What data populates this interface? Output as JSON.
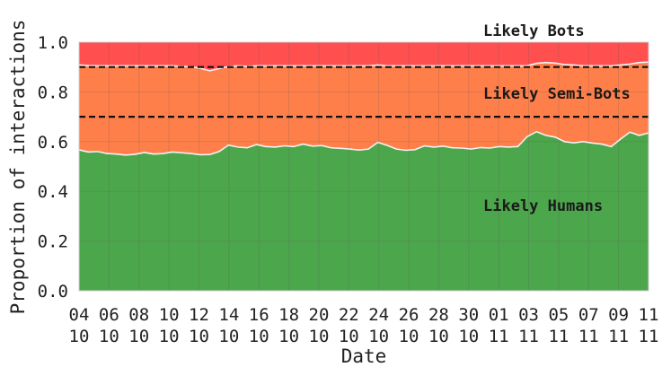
{
  "chart_data": {
    "type": "area",
    "stacked": true,
    "xlabel": "Date",
    "ylabel": "Proportion of interactions",
    "ylim": [
      0,
      1.0
    ],
    "yticks": [
      "0.0",
      "0.2",
      "0.4",
      "0.6",
      "0.8",
      "1.0"
    ],
    "xtick_labels": [
      {
        "day": "04",
        "month": "10"
      },
      {
        "day": "06",
        "month": "10"
      },
      {
        "day": "08",
        "month": "10"
      },
      {
        "day": "10",
        "month": "10"
      },
      {
        "day": "12",
        "month": "10"
      },
      {
        "day": "14",
        "month": "10"
      },
      {
        "day": "16",
        "month": "10"
      },
      {
        "day": "18",
        "month": "10"
      },
      {
        "day": "20",
        "month": "10"
      },
      {
        "day": "22",
        "month": "10"
      },
      {
        "day": "24",
        "month": "10"
      },
      {
        "day": "26",
        "month": "10"
      },
      {
        "day": "28",
        "month": "10"
      },
      {
        "day": "30",
        "month": "10"
      },
      {
        "day": "01",
        "month": "11"
      },
      {
        "day": "03",
        "month": "11"
      },
      {
        "day": "05",
        "month": "11"
      },
      {
        "day": "07",
        "month": "11"
      },
      {
        "day": "09",
        "month": "11"
      },
      {
        "day": "11",
        "month": "11"
      }
    ],
    "grid": true,
    "thresholds": [
      0.9,
      0.7
    ],
    "colors": {
      "humans": "#4ca64c",
      "semibots": "#ff7f4a",
      "bots": "#ff4f4f",
      "boundary": "#f3f3f3"
    },
    "series": [
      {
        "label": "Likely Humans",
        "values": [
          0.567,
          0.558,
          0.56,
          0.552,
          0.55,
          0.546,
          0.549,
          0.556,
          0.55,
          0.552,
          0.558,
          0.555,
          0.552,
          0.547,
          0.548,
          0.56,
          0.586,
          0.578,
          0.575,
          0.588,
          0.58,
          0.578,
          0.583,
          0.58,
          0.59,
          0.582,
          0.584,
          0.575,
          0.573,
          0.57,
          0.566,
          0.57,
          0.597,
          0.585,
          0.57,
          0.565,
          0.568,
          0.583,
          0.578,
          0.582,
          0.575,
          0.574,
          0.57,
          0.576,
          0.574,
          0.58,
          0.578,
          0.58,
          0.62,
          0.64,
          0.625,
          0.618,
          0.6,
          0.595,
          0.6,
          0.594,
          0.59,
          0.58,
          0.61,
          0.638,
          0.625,
          0.635
        ]
      },
      {
        "label": "Likely Semi-Bots",
        "values": [
          0.341,
          0.348,
          0.345,
          0.353,
          0.355,
          0.359,
          0.356,
          0.349,
          0.355,
          0.353,
          0.347,
          0.348,
          0.349,
          0.348,
          0.337,
          0.334,
          0.316,
          0.327,
          0.328,
          0.317,
          0.325,
          0.327,
          0.322,
          0.325,
          0.315,
          0.323,
          0.321,
          0.33,
          0.332,
          0.335,
          0.339,
          0.335,
          0.311,
          0.32,
          0.335,
          0.34,
          0.337,
          0.322,
          0.327,
          0.323,
          0.33,
          0.331,
          0.335,
          0.329,
          0.331,
          0.325,
          0.327,
          0.325,
          0.285,
          0.275,
          0.293,
          0.298,
          0.31,
          0.313,
          0.305,
          0.311,
          0.315,
          0.325,
          0.298,
          0.274,
          0.293,
          0.285
        ]
      },
      {
        "label": "Likely Bots",
        "values": [
          0.092,
          0.094,
          0.095,
          0.095,
          0.095,
          0.095,
          0.095,
          0.095,
          0.095,
          0.095,
          0.095,
          0.097,
          0.099,
          0.105,
          0.115,
          0.106,
          0.098,
          0.095,
          0.097,
          0.095,
          0.095,
          0.095,
          0.095,
          0.095,
          0.095,
          0.095,
          0.095,
          0.095,
          0.095,
          0.095,
          0.095,
          0.095,
          0.092,
          0.095,
          0.095,
          0.095,
          0.095,
          0.095,
          0.095,
          0.095,
          0.095,
          0.095,
          0.095,
          0.095,
          0.095,
          0.095,
          0.095,
          0.095,
          0.095,
          0.085,
          0.082,
          0.084,
          0.09,
          0.092,
          0.095,
          0.095,
          0.095,
          0.095,
          0.092,
          0.088,
          0.082,
          0.08
        ]
      }
    ]
  }
}
